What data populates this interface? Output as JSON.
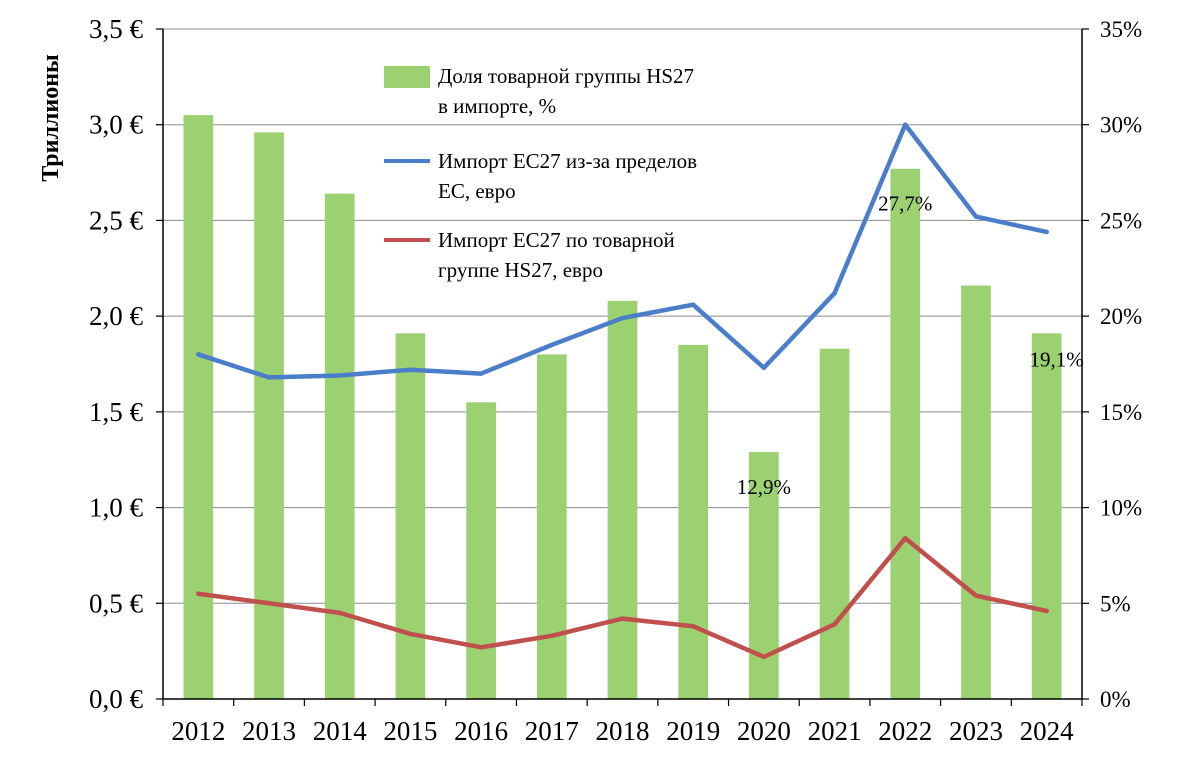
{
  "chart_data": {
    "type": "bar",
    "ylabel": "Триллионы",
    "categories": [
      "2012",
      "2013",
      "2014",
      "2015",
      "2016",
      "2017",
      "2018",
      "2019",
      "2020",
      "2021",
      "2022",
      "2023",
      "2024"
    ],
    "y_left": {
      "min": 0,
      "max": 3.5,
      "step": 0.5,
      "tick_labels": [
        "0,0 €",
        "0,5 €",
        "1,0 €",
        "1,5 €",
        "2,0 €",
        "2,5 €",
        "3,0 €",
        "3,5 €"
      ]
    },
    "y_right": {
      "min": 0,
      "max": 35,
      "step": 5,
      "tick_labels": [
        "0%",
        "5%",
        "10%",
        "15%",
        "20%",
        "25%",
        "30%",
        "35%"
      ]
    },
    "grid": true,
    "legend_position": "top-left inside plot",
    "series": [
      {
        "name": "Доля товарной группы HS27 в импорте, %",
        "type": "bar",
        "axis": "right",
        "color": "#9bd170",
        "values": [
          30.5,
          29.6,
          26.4,
          19.1,
          15.5,
          18.0,
          20.8,
          18.5,
          12.9,
          18.3,
          27.7,
          21.6,
          19.1
        ]
      },
      {
        "name": "Импорт ЕС27 из-за пределов ЕС, евро",
        "type": "line",
        "axis": "left",
        "color": "#4a7ec8",
        "values": [
          1.8,
          1.68,
          1.69,
          1.72,
          1.7,
          1.85,
          1.99,
          2.06,
          1.73,
          2.12,
          3.0,
          2.52,
          2.44
        ]
      },
      {
        "name": "Импорт ЕС27 по товарной группе HS27, евро",
        "type": "line",
        "axis": "left",
        "color": "#c0504d",
        "values": [
          0.55,
          0.5,
          0.45,
          0.34,
          0.27,
          0.33,
          0.42,
          0.38,
          0.22,
          0.39,
          0.84,
          0.54,
          0.46
        ]
      }
    ],
    "annotations": [
      {
        "category": "2020",
        "text": "12,9%"
      },
      {
        "category": "2022",
        "text": "27,7%"
      },
      {
        "category": "2024",
        "text": "19,1%"
      }
    ]
  }
}
